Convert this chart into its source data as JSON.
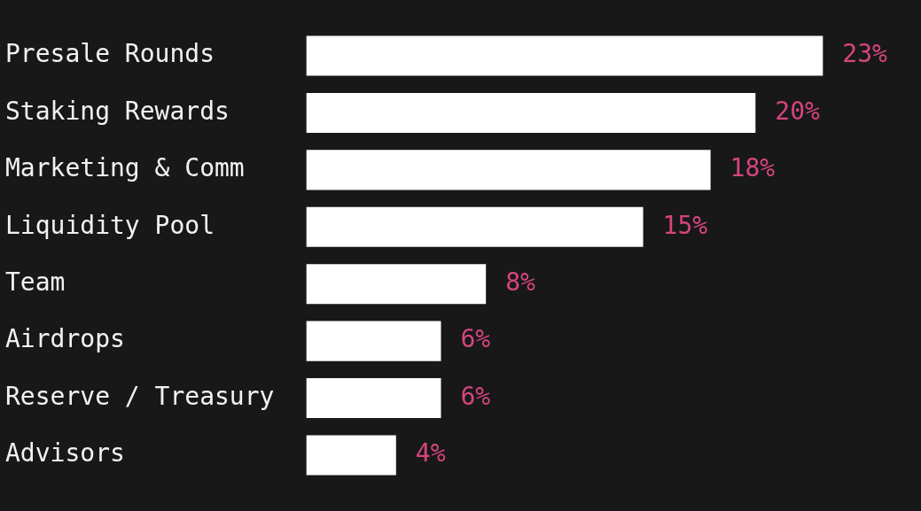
{
  "chart_data": {
    "type": "bar",
    "orientation": "horizontal",
    "categories": [
      "Presale Rounds",
      "Staking Rewards",
      "Marketing & Comm",
      "Liquidity Pool",
      "Team",
      "Airdrops",
      "Reserve / Treasury",
      "Advisors"
    ],
    "values": [
      23,
      20,
      18,
      15,
      8,
      6,
      6,
      4
    ],
    "color": "#ffffff",
    "value_labels": [
      "23%",
      "20%",
      "18%",
      "15%",
      "8%",
      "6%",
      "6%",
      "4%"
    ],
    "legend": false,
    "tick_labels": "y"
  }
}
